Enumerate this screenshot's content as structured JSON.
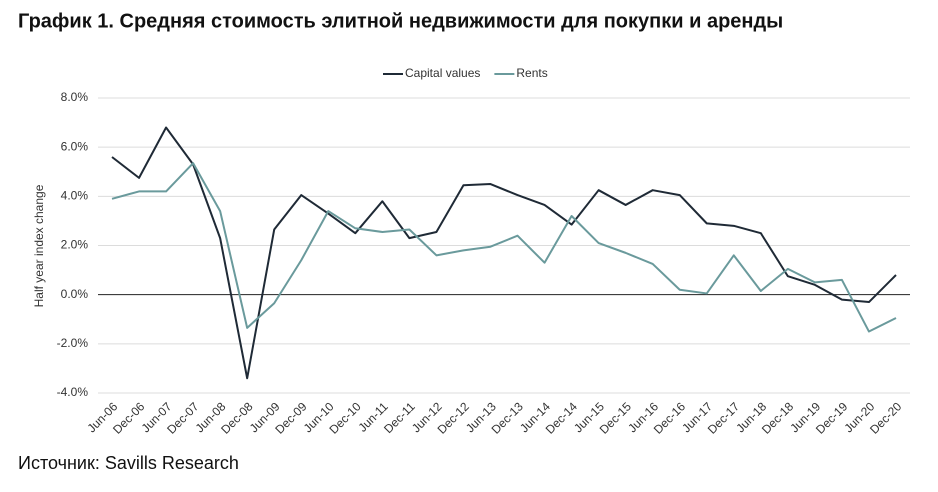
{
  "chart_data": {
    "type": "line",
    "title": "График 1. Средняя стоимость элитной недвижимости для покупки и аренды",
    "y_label": "Half year index change",
    "source": "Источник: Savills Research",
    "categories": [
      "Jun-06",
      "Dec-06",
      "Jun-07",
      "Dec-07",
      "Jun-08",
      "Dec-08",
      "Jun-09",
      "Dec-09",
      "Jun-10",
      "Dec-10",
      "Jun-11",
      "Dec-11",
      "Jun-12",
      "Dec-12",
      "Jun-13",
      "Dec-13",
      "Jun-14",
      "Dec-14",
      "Jun-15",
      "Dec-15",
      "Jun-16",
      "Dec-16",
      "Jun-17",
      "Dec-17",
      "Jun-18",
      "Dec-18",
      "Jun-19",
      "Dec-19",
      "Jun-20",
      "Dec-20"
    ],
    "series": [
      {
        "name": "Capital values",
        "color": "#1f2a36",
        "values": [
          5.6,
          4.75,
          6.8,
          5.3,
          2.3,
          -3.4,
          2.65,
          4.05,
          3.3,
          2.5,
          3.8,
          2.3,
          2.55,
          4.45,
          4.5,
          4.05,
          3.65,
          2.85,
          4.25,
          3.65,
          4.25,
          4.05,
          2.9,
          2.8,
          2.5,
          0.75,
          0.4,
          -0.2,
          -0.3,
          0.8
        ]
      },
      {
        "name": "Rents",
        "color": "#6a9a9c",
        "values": [
          3.9,
          4.2,
          4.2,
          5.35,
          3.4,
          -1.35,
          -0.35,
          1.4,
          3.4,
          2.7,
          2.55,
          2.65,
          1.6,
          1.8,
          1.95,
          2.4,
          1.3,
          3.2,
          2.1,
          1.7,
          1.25,
          0.2,
          0.05,
          1.6,
          0.15,
          1.05,
          0.5,
          0.6,
          -1.5,
          -0.95
        ]
      }
    ],
    "ylim": [
      -4,
      8
    ],
    "yticks": [
      {
        "value": -4,
        "label": "-4.0%"
      },
      {
        "value": -2,
        "label": "-2.0%"
      },
      {
        "value": 0,
        "label": "0.0%"
      },
      {
        "value": 2,
        "label": "2.0%"
      },
      {
        "value": 4,
        "label": "4.0%"
      },
      {
        "value": 6,
        "label": "6.0%"
      },
      {
        "value": 8,
        "label": "8.0%"
      }
    ],
    "grid": true,
    "legend": "top"
  }
}
